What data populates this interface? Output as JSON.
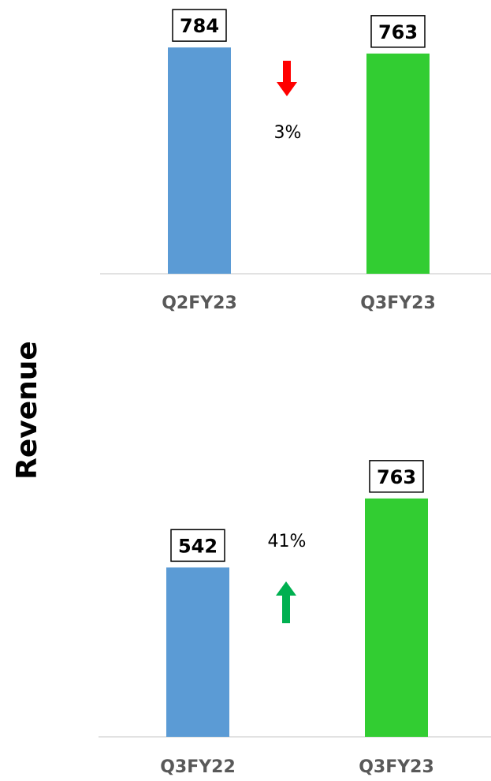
{
  "ylabel": "Revenue",
  "colors": {
    "prior": "#5b9bd5",
    "current": "#32cd32",
    "baseline": "#d9d9d9",
    "down": "#ff0000",
    "up": "#00b050"
  },
  "chart_data": [
    {
      "type": "bar",
      "categories": [
        "Q2FY23",
        "Q3FY23"
      ],
      "values": [
        784,
        763
      ],
      "change_label": "3%",
      "change_direction": "down",
      "ylim": [
        0,
        820
      ]
    },
    {
      "type": "bar",
      "categories": [
        "Q3FY22",
        "Q3FY23"
      ],
      "values": [
        542,
        763
      ],
      "change_label": "41%",
      "change_direction": "up",
      "ylim": [
        0,
        1000
      ]
    }
  ]
}
